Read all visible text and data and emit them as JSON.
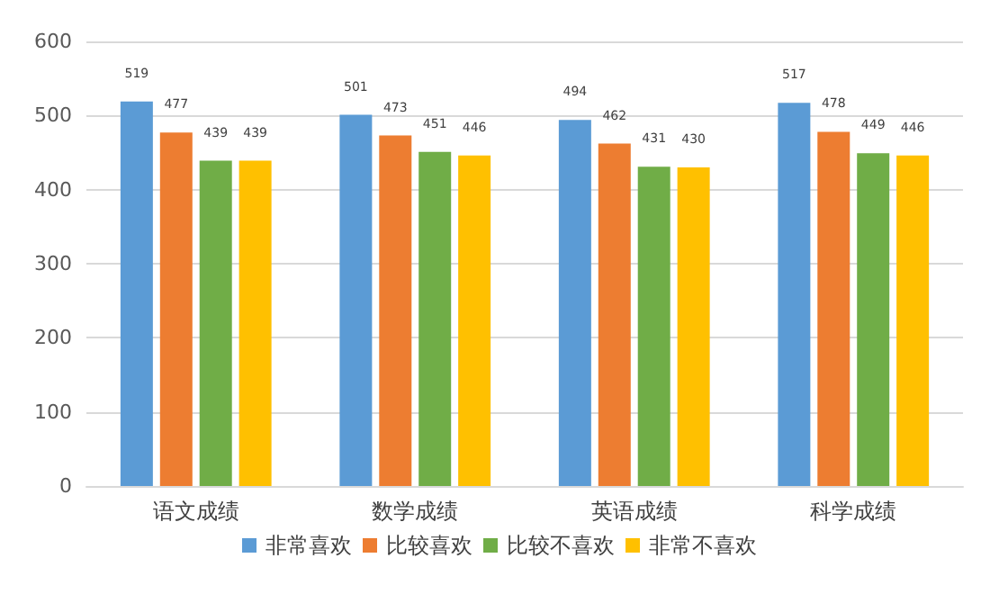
{
  "chart_data": {
    "type": "bar",
    "categories": [
      "语文成绩",
      "数学成绩",
      "英语成绩",
      "科学成绩"
    ],
    "series": [
      {
        "name": "非常喜欢",
        "color": "#5b9bd5",
        "values": [
          519,
          501,
          494,
          517
        ]
      },
      {
        "name": "比较喜欢",
        "color": "#ed7d31",
        "values": [
          477,
          473,
          462,
          478
        ]
      },
      {
        "name": "比较不喜欢",
        "color": "#70ad47",
        "values": [
          439,
          451,
          431,
          449
        ]
      },
      {
        "name": "非常不喜欢",
        "color": "#ffc000",
        "values": [
          439,
          446,
          430,
          446
        ]
      }
    ],
    "ylim": [
      0,
      600
    ],
    "yticks": [
      0,
      100,
      200,
      300,
      400,
      500,
      600
    ],
    "grid": "y",
    "legend": "bottom",
    "data_labels": true
  }
}
